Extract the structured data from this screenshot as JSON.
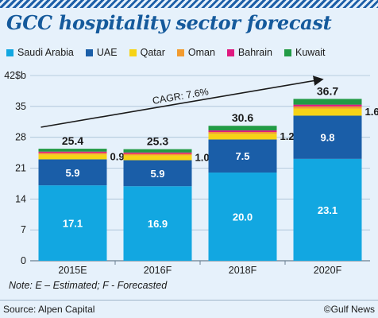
{
  "title": "GCC hospitality sector forecast",
  "chart_data": {
    "type": "bar",
    "stacked": true,
    "categories": [
      "2015E",
      "2016F",
      "2018F",
      "2020F"
    ],
    "series": [
      {
        "name": "Saudi Arabia",
        "color": "#12a7e1",
        "values": [
          17.1,
          16.9,
          20.0,
          23.1
        ]
      },
      {
        "name": "UAE",
        "color": "#1a5ea8",
        "values": [
          5.9,
          5.9,
          7.5,
          9.8
        ]
      },
      {
        "name": "Qatar",
        "color": "#f6d316",
        "values": [
          1.1,
          1.1,
          1.3,
          1.6
        ]
      },
      {
        "name": "Oman",
        "color": "#f29b2f",
        "values": [
          0.35,
          0.35,
          0.4,
          0.5
        ]
      },
      {
        "name": "Bahrain",
        "color": "#df1a80",
        "values": [
          0.3,
          0.3,
          0.35,
          0.4
        ]
      },
      {
        "name": "Kuwait",
        "color": "#229b45",
        "values": [
          0.65,
          0.75,
          1.05,
          1.3
        ]
      }
    ],
    "segment_labels": [
      {
        "series": "Saudi Arabia",
        "labels": [
          "17.1",
          "16.9",
          "20.0",
          "23.1"
        ]
      },
      {
        "series": "UAE",
        "labels": [
          "5.9",
          "5.9",
          "7.5",
          "9.8"
        ]
      }
    ],
    "side_labels": [
      "0.9",
      "1.0",
      "1.2",
      "1.6"
    ],
    "totals": [
      "25.4",
      "25.3",
      "30.6",
      "36.7"
    ],
    "y_ticks": [
      "0",
      "7",
      "14",
      "21",
      "28",
      "35",
      "42$b"
    ],
    "ylim": [
      0,
      42
    ],
    "grid": true,
    "annotation": "CAGR: 7.6%"
  },
  "footnote": "Note: E – Estimated; F - Forecasted",
  "source": "Source: Alpen Capital",
  "credit": "©Gulf News"
}
